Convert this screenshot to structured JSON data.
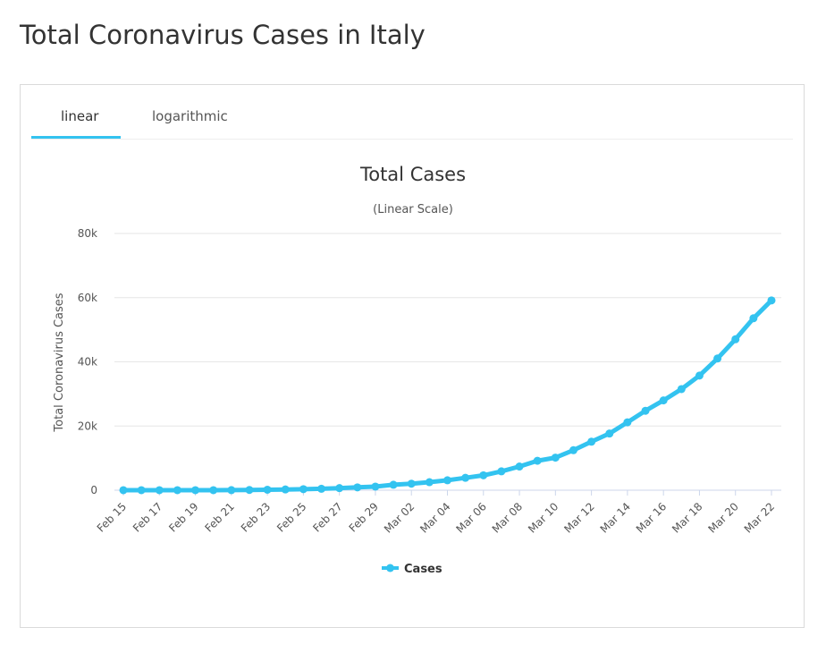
{
  "page": {
    "title": "Total Coronavirus Cases in Italy"
  },
  "tabs": [
    {
      "label": "linear",
      "active": true
    },
    {
      "label": "logarithmic",
      "active": false
    }
  ],
  "colors": {
    "series": "#33c3f0",
    "grid": "#e6e6e6",
    "tab_active": "#33c3f0"
  },
  "chart_data": {
    "type": "line",
    "title": "Total Cases",
    "subtitle": "(Linear Scale)",
    "ylabel": "Total Coronavirus Cases",
    "xlabel": "",
    "ylim": [
      0,
      80000
    ],
    "yticks": [
      0,
      20000,
      40000,
      60000,
      80000
    ],
    "ytick_labels": [
      "0",
      "20k",
      "40k",
      "60k",
      "80k"
    ],
    "xtick_labels": [
      "Feb 15",
      "Feb 17",
      "Feb 19",
      "Feb 21",
      "Feb 23",
      "Feb 25",
      "Feb 27",
      "Feb 29",
      "Mar 02",
      "Mar 04",
      "Mar 06",
      "Mar 08",
      "Mar 10",
      "Mar 12",
      "Mar 14",
      "Mar 16",
      "Mar 18",
      "Mar 20",
      "Mar 22"
    ],
    "x": [
      "Feb 15",
      "Feb 16",
      "Feb 17",
      "Feb 18",
      "Feb 19",
      "Feb 20",
      "Feb 21",
      "Feb 22",
      "Feb 23",
      "Feb 24",
      "Feb 25",
      "Feb 26",
      "Feb 27",
      "Feb 28",
      "Feb 29",
      "Mar 01",
      "Mar 02",
      "Mar 03",
      "Mar 04",
      "Mar 05",
      "Mar 06",
      "Mar 07",
      "Mar 08",
      "Mar 09",
      "Mar 10",
      "Mar 11",
      "Mar 12",
      "Mar 13",
      "Mar 14",
      "Mar 15",
      "Mar 16",
      "Mar 17",
      "Mar 18",
      "Mar 19",
      "Mar 20",
      "Mar 21",
      "Mar 22"
    ],
    "grid": true,
    "legend": "bottom-center",
    "series": [
      {
        "name": "Cases",
        "values": [
          3,
          3,
          3,
          3,
          3,
          3,
          20,
          79,
          150,
          227,
          320,
          445,
          650,
          888,
          1128,
          1694,
          2036,
          2502,
          3089,
          3858,
          4636,
          5883,
          7375,
          9172,
          10149,
          12462,
          15113,
          17660,
          21157,
          24747,
          27980,
          31506,
          35713,
          41035,
          47021,
          53578,
          59138
        ]
      }
    ]
  }
}
